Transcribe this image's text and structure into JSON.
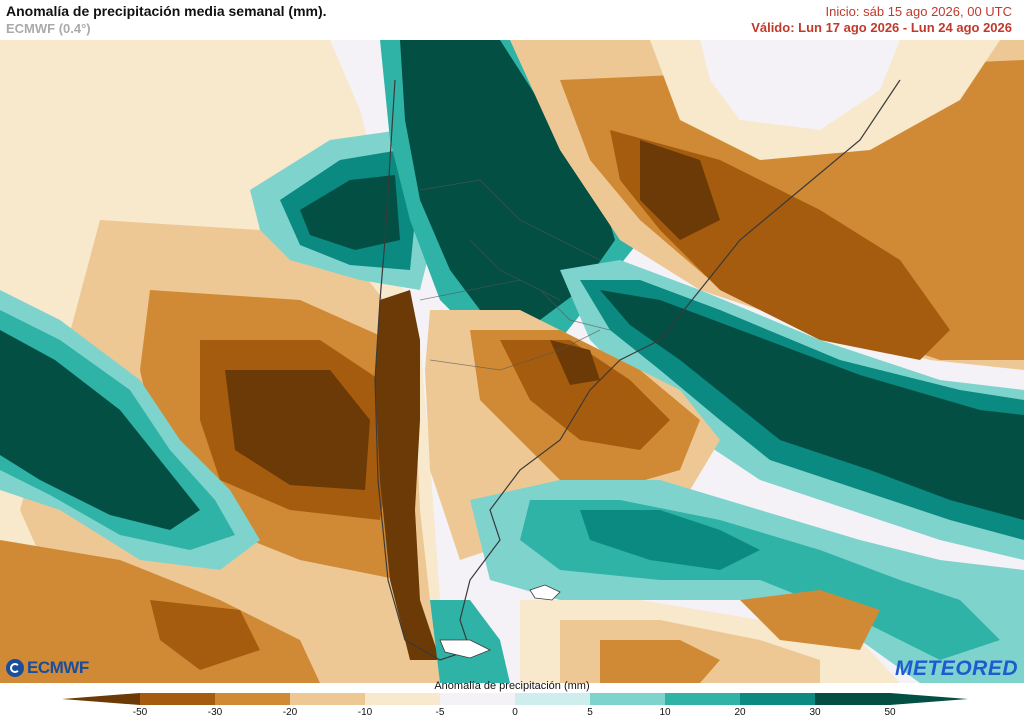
{
  "header": {
    "title": "Anomalía de precipitación media semanal (mm).",
    "model": "ECMWF (0.4°)",
    "init": "Inicio:  sáb 15 ago 2026, 00 UTC",
    "valid": "Válido: Lun 17 ago 2026 - Lun 24 ago 2026"
  },
  "logos": {
    "left": "ECMWF",
    "right": "METEORED"
  },
  "legend": {
    "title": "Anomalía de precipitación (mm)",
    "ticks": [
      "-50",
      "-30",
      "-20",
      "-10",
      "-5",
      "0",
      "5",
      "10",
      "20",
      "30",
      "50"
    ],
    "colors": [
      "#6b3a06",
      "#a65c0f",
      "#d08a35",
      "#eec894",
      "#f8e8cc",
      "#f4f2f6",
      "#cdeeed",
      "#7fd3cd",
      "#2fb3a7",
      "#0a8a80",
      "#034f43"
    ]
  },
  "palette": {
    "neutral": "#f4f2f6",
    "dry_light": "#f8e8cc",
    "dry_mid": "#eec894",
    "dry": "#d08a35",
    "dry_strong": "#a65c0f",
    "dry_extreme": "#6b3a06",
    "wet_light": "#cdeeed",
    "wet_mid": "#7fd3cd",
    "wet": "#2fb3a7",
    "wet_strong": "#0a8a80",
    "wet_extreme": "#034f43",
    "border": "#3a3a3a"
  }
}
